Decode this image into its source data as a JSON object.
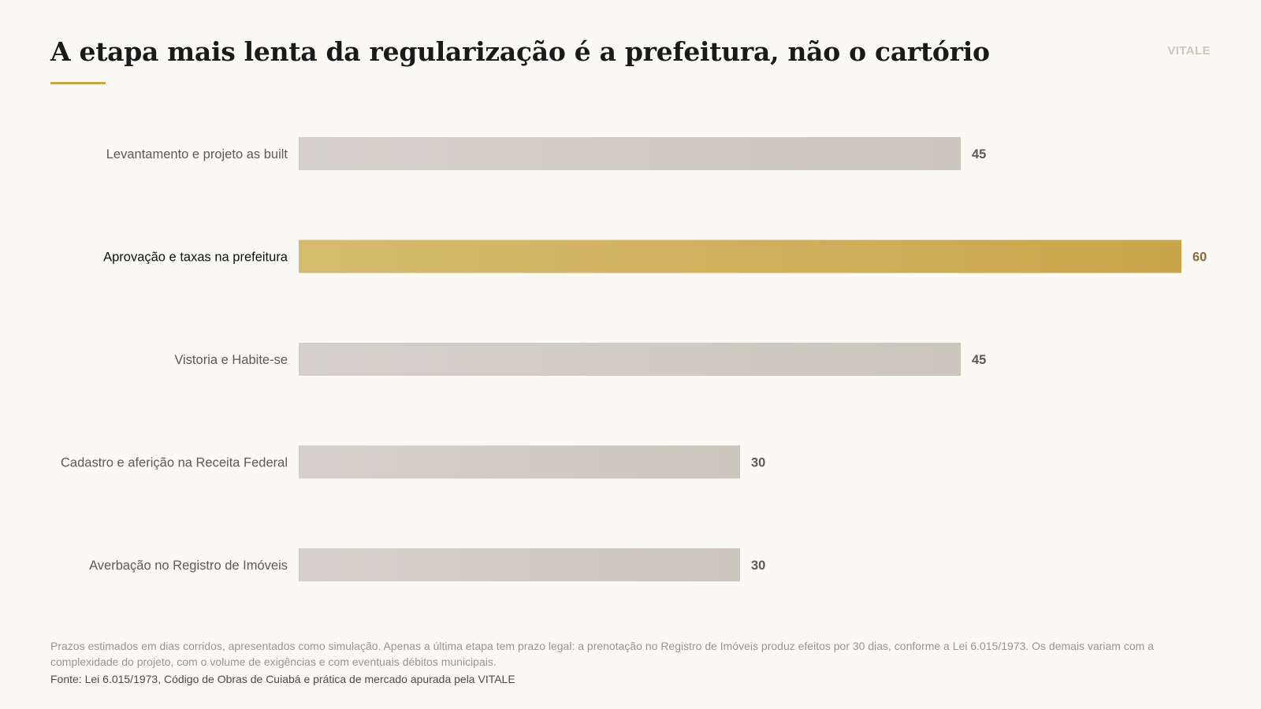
{
  "header": {
    "title": "A etapa mais lenta da regularização é a prefeitura, não o cartório",
    "brand": "VITALE"
  },
  "colors": {
    "accent": "#c9a64c",
    "accent_light": "#d6bb6f",
    "bar": "#cbc6bc",
    "bar_light": "#d5d1ca",
    "label": "#5e5a55",
    "label_highlight": "#111111",
    "value": "#5e5a55",
    "value_highlight": "#8a6d3b"
  },
  "chart_data": {
    "type": "bar",
    "orientation": "horizontal",
    "title": "A etapa mais lenta da regularização é a prefeitura, não o cartório",
    "xlabel": "",
    "ylabel": "",
    "categories": [
      "Levantamento e projeto as built",
      "Aprovação e taxas na prefeitura",
      "Vistoria e Habite-se",
      "Cadastro e aferição na Receita Federal",
      "Averbação no Registro de Imóveis"
    ],
    "values": [
      45,
      60,
      45,
      30,
      30
    ],
    "data_labels": [
      "45",
      "60",
      "45",
      "30",
      "30"
    ],
    "highlight_index": 1,
    "xlim": [
      0,
      60
    ],
    "grid": false,
    "legend": "none"
  },
  "footer": {
    "note": "Prazos estimados em dias corridos, apresentados como simulação. Apenas a última etapa tem prazo legal: a prenotação no Registro de Imóveis produz efeitos por 30 dias, conforme a Lei 6.015/1973. Os demais variam com a complexidade do projeto, com o volume de exigências e com eventuais débitos municipais.",
    "source": "Fonte: Lei 6.015/1973, Código de Obras de Cuiabá e prática de mercado apurada pela VITALE"
  }
}
